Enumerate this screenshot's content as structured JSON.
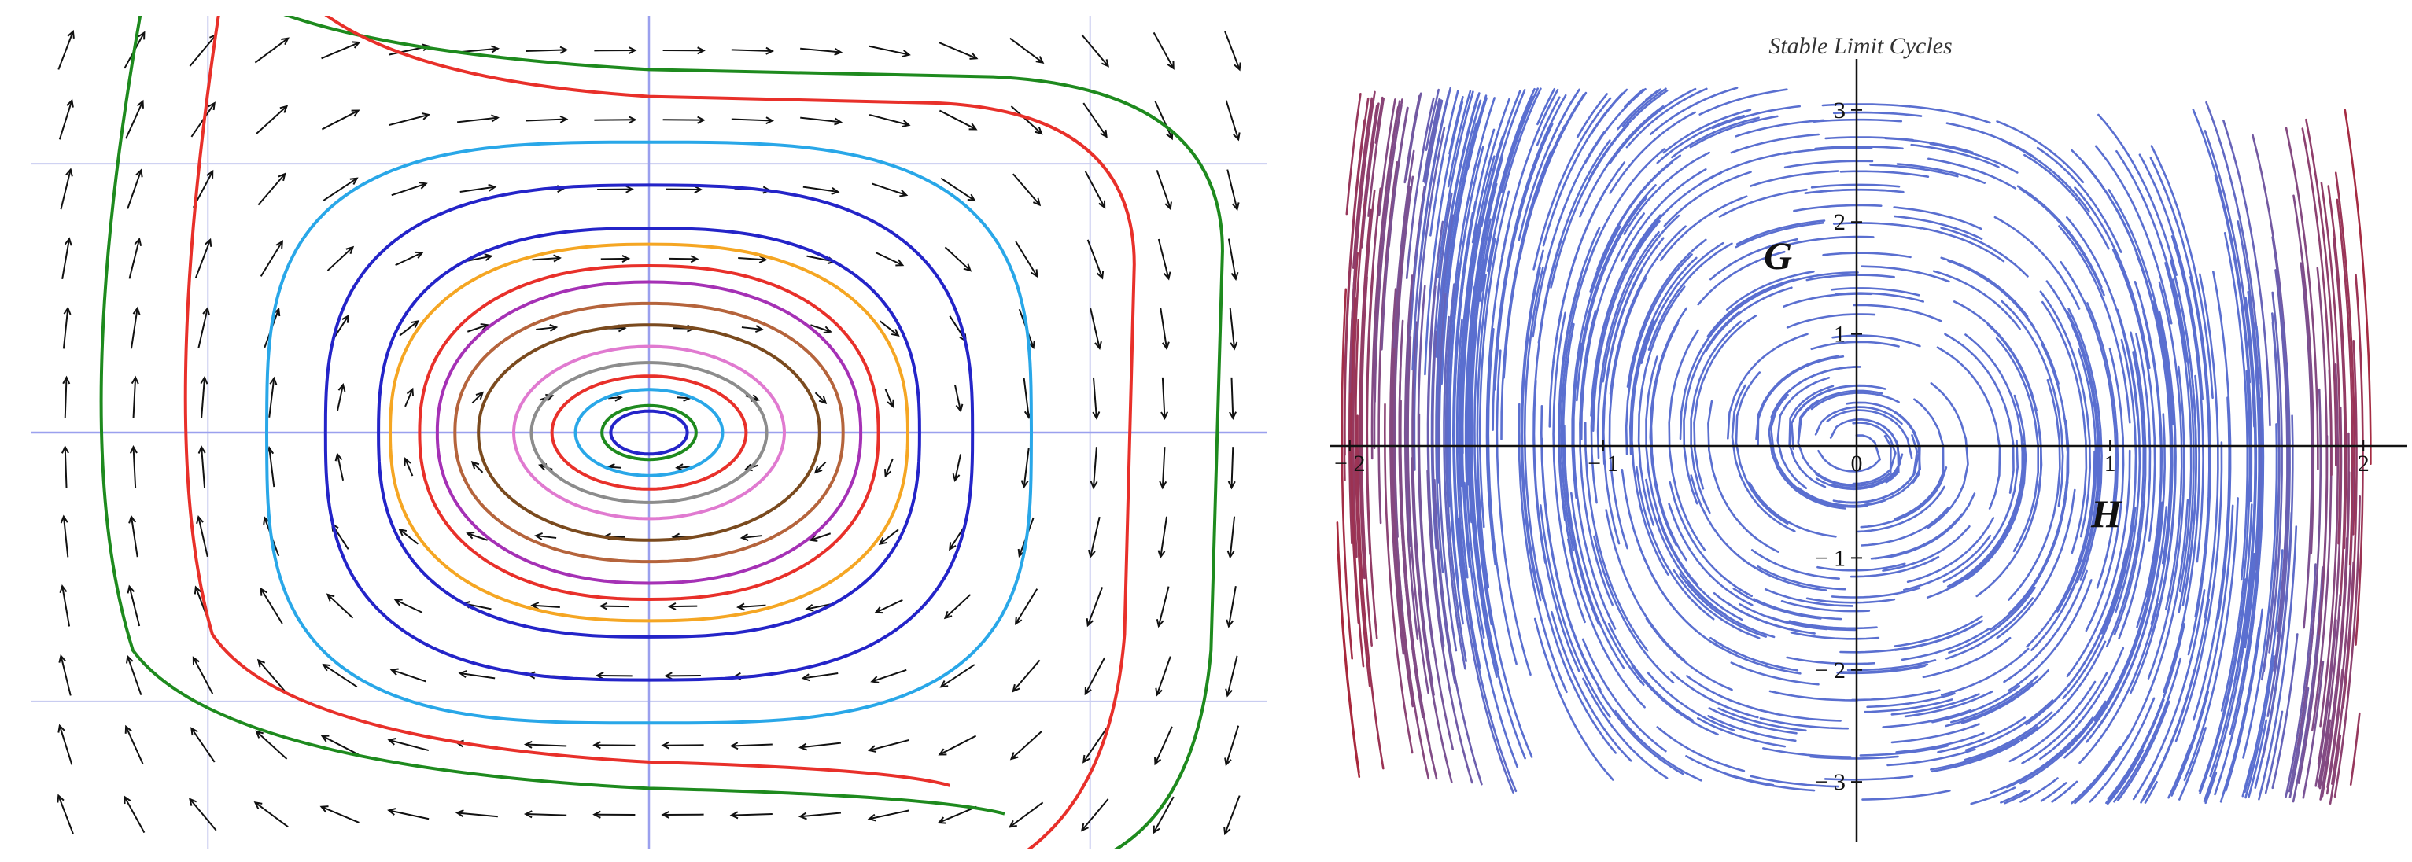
{
  "chart_data": [
    {
      "type": "phase-portrait",
      "title": "",
      "xlabel": "",
      "ylabel": "",
      "xlim": [
        -2.1,
        2.1
      ],
      "ylim": [
        -1.55,
        1.55
      ],
      "grid": true,
      "direction_field": "arrows",
      "trajectories": [
        {
          "color": "#1e8a1e",
          "shape": "open",
          "rx": 1.95,
          "ry": 1.35,
          "power": 4.0,
          "open_side": "left"
        },
        {
          "color": "#e8302a",
          "shape": "open",
          "rx": 1.65,
          "ry": 1.25,
          "power": 4.0,
          "open_side": "left"
        },
        {
          "color": "#29a7e8",
          "shape": "closed",
          "rx": 1.3,
          "ry": 1.08,
          "power": 3.2
        },
        {
          "color": "#2424c8",
          "shape": "closed",
          "rx": 1.1,
          "ry": 0.92,
          "power": 2.8
        },
        {
          "color": "#2424c8",
          "shape": "closed",
          "rx": 0.92,
          "ry": 0.76,
          "power": 2.6
        },
        {
          "color": "#f5a623",
          "shape": "closed",
          "rx": 0.88,
          "ry": 0.7,
          "power": 2.4
        },
        {
          "color": "#e8302a",
          "shape": "closed",
          "rx": 0.78,
          "ry": 0.62,
          "power": 2.3
        },
        {
          "color": "#a531b5",
          "shape": "closed",
          "rx": 0.72,
          "ry": 0.56,
          "power": 2.2
        },
        {
          "color": "#b5643c",
          "shape": "closed",
          "rx": 0.66,
          "ry": 0.48,
          "power": 2.2
        },
        {
          "color": "#7a4a1e",
          "shape": "closed",
          "rx": 0.58,
          "ry": 0.4,
          "power": 2.1
        },
        {
          "color": "#e07ad0",
          "shape": "closed",
          "rx": 0.46,
          "ry": 0.32,
          "power": 2.0
        },
        {
          "color": "#8c8c8c",
          "shape": "closed",
          "rx": 0.4,
          "ry": 0.26,
          "power": 2.0
        },
        {
          "color": "#e8302a",
          "shape": "closed",
          "rx": 0.33,
          "ry": 0.21,
          "power": 2.0
        },
        {
          "color": "#29a7e8",
          "shape": "closed",
          "rx": 0.25,
          "ry": 0.16,
          "power": 2.0
        },
        {
          "color": "#1e8a1e",
          "shape": "closed",
          "rx": 0.16,
          "ry": 0.1,
          "power": 2.0
        },
        {
          "color": "#2424c8",
          "shape": "closed",
          "rx": 0.13,
          "ry": 0.08,
          "power": 2.0
        }
      ]
    },
    {
      "type": "streamplot",
      "title": "Stable Limit Cycles",
      "xlabel": "H",
      "ylabel": "G",
      "xlim": [
        -2.1,
        2.1
      ],
      "ylim": [
        -3.3,
        3.3
      ],
      "x_ticks": [
        -2,
        -1,
        0,
        1,
        2
      ],
      "x_tick_labels": [
        "− 2",
        "− 1",
        "0",
        "1",
        "2"
      ],
      "y_ticks": [
        -3,
        -2,
        -1,
        1,
        2,
        3
      ],
      "y_tick_labels": [
        "− 3",
        "− 2",
        "− 1",
        "1",
        "2",
        "3"
      ],
      "grid": false,
      "colors": {
        "inner": "#5a6fd0",
        "outer": "#a8283c"
      }
    }
  ]
}
